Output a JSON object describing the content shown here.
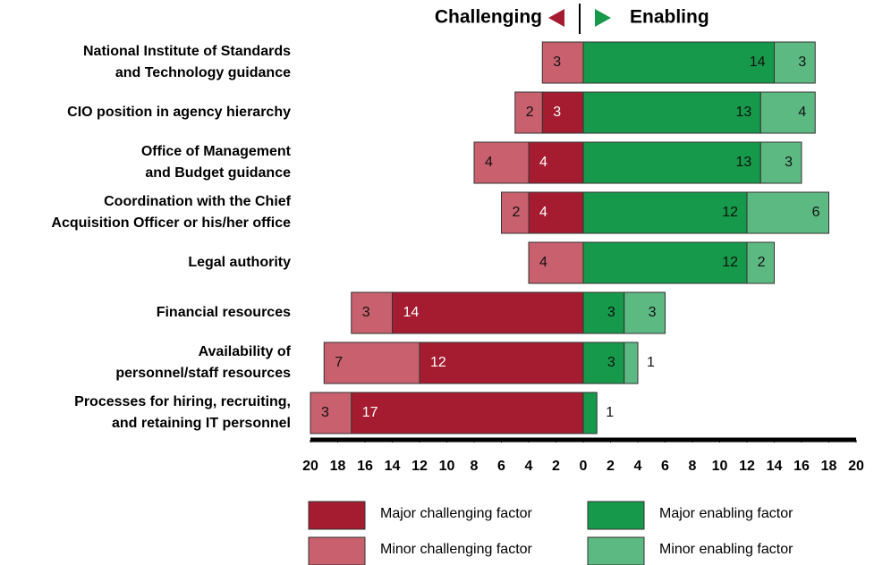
{
  "chart_data": {
    "type": "diverging-bar",
    "header_left": "Challenging",
    "header_right": "Enabling",
    "categories": [
      [
        "National Institute of Standards",
        "and Technology guidance"
      ],
      [
        "CIO position in agency hierarchy"
      ],
      [
        "Office of Management",
        "and Budget guidance"
      ],
      [
        "Coordination with the Chief",
        "Acquisition Officer or his/her office"
      ],
      [
        "Legal authority"
      ],
      [
        "Financial resources"
      ],
      [
        "Availability of",
        "personnel/staff resources"
      ],
      [
        "Processes for hiring, recruiting,",
        "and retaining IT personnel"
      ]
    ],
    "series": [
      {
        "name": "Major challenging factor",
        "color": "#a51c30",
        "side": "left",
        "values": [
          0,
          3,
          4,
          4,
          0,
          14,
          12,
          17
        ]
      },
      {
        "name": "Minor challenging factor",
        "color": "#c8606e",
        "side": "left",
        "values": [
          3,
          2,
          4,
          2,
          4,
          3,
          7,
          3
        ]
      },
      {
        "name": "Major enabling factor",
        "color": "#16994a",
        "side": "right",
        "values": [
          14,
          13,
          13,
          12,
          12,
          3,
          3,
          1
        ]
      },
      {
        "name": "Minor enabling factor",
        "color": "#5db982",
        "side": "right",
        "values": [
          3,
          4,
          3,
          6,
          2,
          3,
          1,
          0
        ]
      }
    ],
    "xlim": [
      -20,
      20
    ],
    "xticks": [
      {
        "value": -20,
        "label": "20"
      },
      {
        "value": -18,
        "label": "18"
      },
      {
        "value": -16,
        "label": "16"
      },
      {
        "value": -14,
        "label": "14"
      },
      {
        "value": -12,
        "label": "12"
      },
      {
        "value": -10,
        "label": "10"
      },
      {
        "value": -8,
        "label": "8"
      },
      {
        "value": -6,
        "label": "6"
      },
      {
        "value": -4,
        "label": "4"
      },
      {
        "value": -2,
        "label": "2"
      },
      0,
      2,
      4,
      6,
      8,
      10,
      12,
      14,
      16,
      18,
      20
    ]
  }
}
